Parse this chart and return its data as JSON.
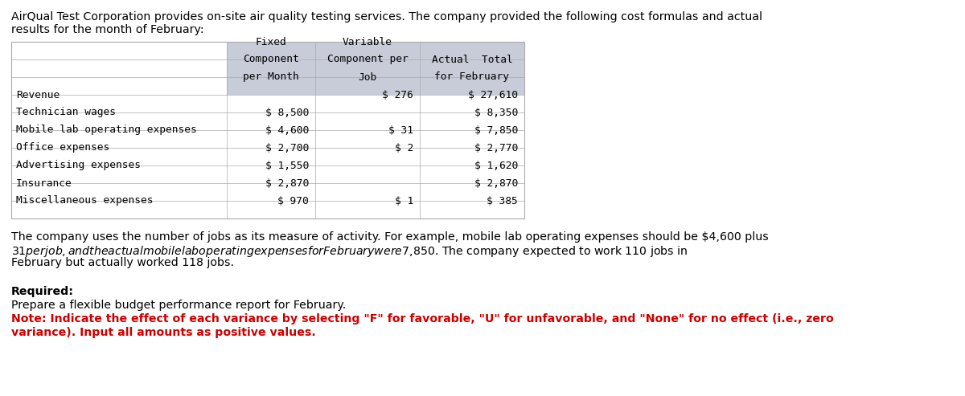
{
  "intro_line1": "AirQual Test Corporation provides on-site air quality testing services. The company provided the following cost formulas and actual",
  "intro_line2": "results for the month of February:",
  "table_header": [
    [
      "",
      "Fixed",
      "Variable",
      ""
    ],
    [
      "",
      "Component",
      "Component per",
      "Actual  Total"
    ],
    [
      "",
      "per Month",
      "Job",
      "for February"
    ]
  ],
  "table_rows": [
    [
      "Revenue",
      "",
      "$ 276",
      "$ 27,610"
    ],
    [
      "Technician wages",
      "$ 8,500",
      "",
      "$ 8,350"
    ],
    [
      "Mobile lab operating expenses",
      "$ 4,600",
      "$ 31",
      "$ 7,850"
    ],
    [
      "Office expenses",
      "$ 2,700",
      "$ 2",
      "$ 2,770"
    ],
    [
      "Advertising expenses",
      "$ 1,550",
      "",
      "$ 1,620"
    ],
    [
      "Insurance",
      "$ 2,870",
      "",
      "$ 2,870"
    ],
    [
      "Miscellaneous expenses",
      "$ 970",
      "$ 1",
      "$ 385"
    ]
  ],
  "body_lines": [
    "The company uses the number of jobs as its measure of activity. For example, mobile lab operating expenses should be $4,600 plus",
    "$31 per job, and the actual mobile lab operating expenses for February were $7,850. The company expected to work 110 jobs in",
    "February but actually worked 118 jobs."
  ],
  "required_label": "Required:",
  "required_text": "Prepare a flexible budget performance report for February.",
  "note_lines": [
    "Note: Indicate the effect of each variance by selecting \"F\" for favorable, \"U\" for unfavorable, and \"None\" for no effect (i.e., zero",
    "variance). Input all amounts as positive values."
  ],
  "header_bg_color": "#c8ccd8",
  "table_border_color": "#aaaaaa",
  "note_color": "#cc0000",
  "bg_color": "#ffffff"
}
